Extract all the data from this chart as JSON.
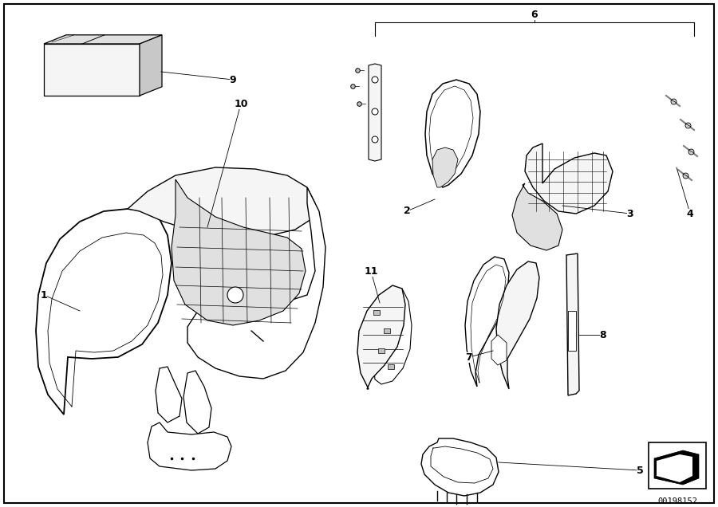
{
  "background_color": "#ffffff",
  "diagram_number": "00198152",
  "fig_width": 9.0,
  "fig_height": 6.36,
  "dpi": 100,
  "label_style": {
    "fontsize": 9,
    "fontweight": "bold",
    "color": "#000000"
  },
  "line_color": "#000000",
  "fill_light": "#f5f5f5",
  "fill_mid": "#e0e0e0",
  "fill_dark": "#c8c8c8"
}
